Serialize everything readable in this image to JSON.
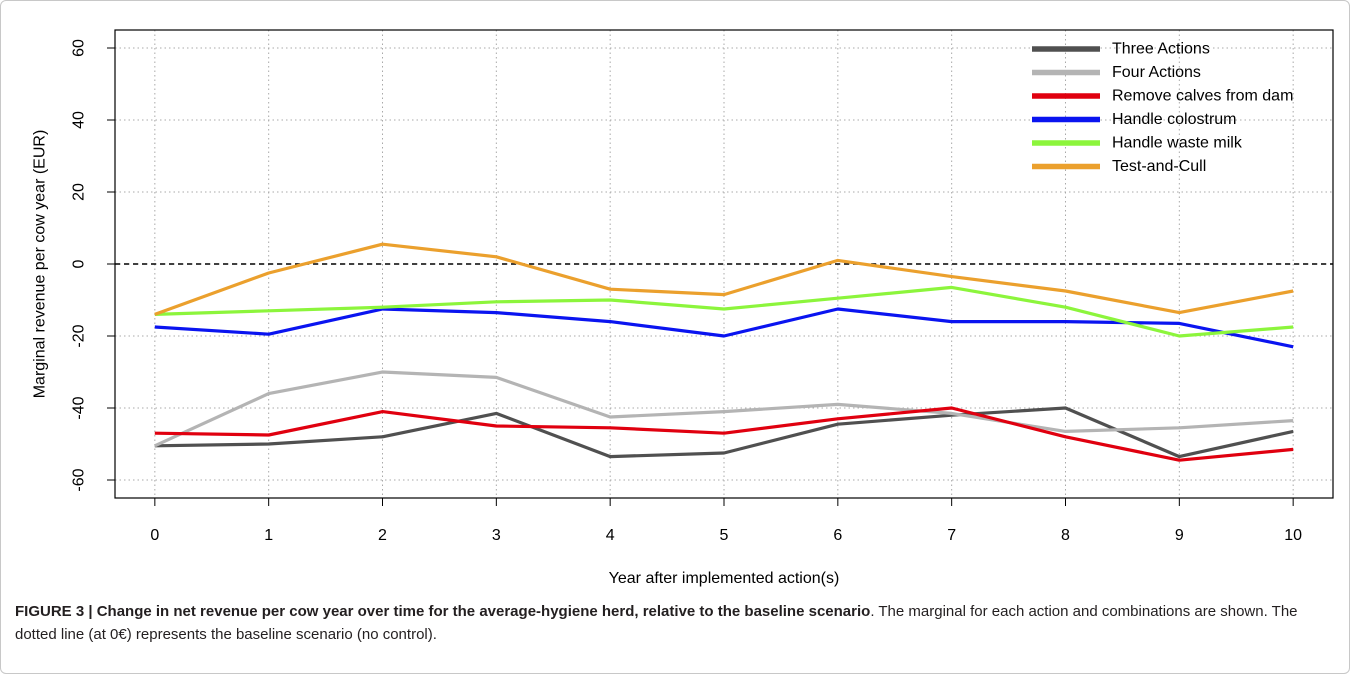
{
  "caption": {
    "bold": "FIGURE 3 | Change in net revenue per cow year over time for the average-hygiene herd, relative to the baseline scenario",
    "text": ". The marginal for each action and combinations are shown. The dotted line (at 0€) represents the baseline scenario (no control)."
  },
  "chart_data": {
    "type": "line",
    "title": "",
    "xlabel": "Year after implemented action(s)",
    "ylabel": "Marginal revenue per cow year (EUR)",
    "x": [
      0,
      1,
      2,
      3,
      4,
      5,
      6,
      7,
      8,
      9,
      10
    ],
    "x_ticks": [
      "0",
      "1",
      "2",
      "3",
      "4",
      "5",
      "6",
      "7",
      "8",
      "9",
      "10"
    ],
    "y_ticks": [
      "-60",
      "-40",
      "-20",
      "0",
      "20",
      "40",
      "60"
    ],
    "y_tick_values": [
      -60,
      -40,
      -20,
      0,
      20,
      40,
      60
    ],
    "xlim": [
      -0.35,
      10.35
    ],
    "ylim": [
      -65,
      65
    ],
    "grid": true,
    "reference_line": 0,
    "legend_position": "top-right",
    "series": [
      {
        "name": "Three Actions",
        "color": "#505050",
        "values": [
          -50.5,
          -50,
          -48,
          -41.5,
          -53.5,
          -52.5,
          -44.5,
          -42,
          -40,
          -53.5,
          -46.5
        ]
      },
      {
        "name": "Four Actions",
        "color": "#b4b4b4",
        "values": [
          -50.5,
          -36,
          -30,
          -31.5,
          -42.5,
          -41,
          -39,
          -41.5,
          -46.5,
          -45.5,
          -43.5
        ]
      },
      {
        "name": "Remove calves from dam",
        "color": "#e0000f",
        "values": [
          -47,
          -47.5,
          -41,
          -45,
          -45.5,
          -47,
          -43,
          -40,
          -48,
          -54.5,
          -51.5
        ]
      },
      {
        "name": "Handle colostrum",
        "color": "#0a14f0",
        "values": [
          -17.5,
          -19.5,
          -12.5,
          -13.5,
          -16,
          -20,
          -12.5,
          -16,
          -16,
          -16.5,
          -23
        ]
      },
      {
        "name": "Handle waste milk",
        "color": "#8cf53c",
        "values": [
          -14,
          -13,
          -12,
          -10.5,
          -10,
          -12.5,
          -9.5,
          -6.5,
          -12,
          -20,
          -17.5
        ]
      },
      {
        "name": "Test-and-Cull",
        "color": "#eba02d",
        "values": [
          -14,
          -2.5,
          5.5,
          2,
          -7,
          -8.5,
          1,
          -3.5,
          -7.5,
          -13.5,
          -7.5
        ]
      }
    ]
  }
}
